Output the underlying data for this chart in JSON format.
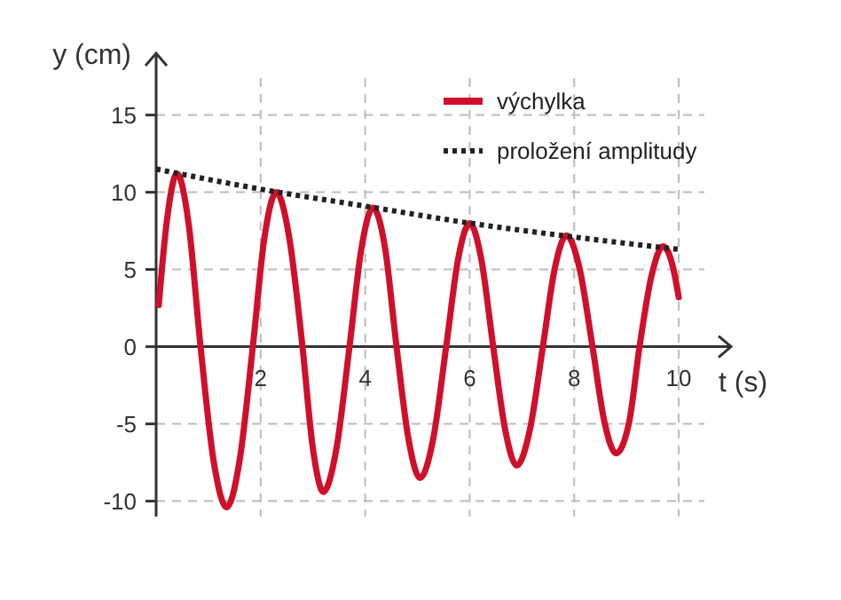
{
  "chart_data": {
    "type": "line",
    "xlabel": "t (s)",
    "ylabel": "y (cm)",
    "xlim": [
      0,
      11
    ],
    "ylim": [
      -11,
      19
    ],
    "xticks": [
      2,
      4,
      6,
      8,
      10
    ],
    "yticks": [
      -10,
      -5,
      0,
      5,
      10,
      15
    ],
    "grid": true,
    "legend": "top right",
    "series": [
      {
        "name": "výchylka",
        "color": "#d0102a",
        "line_style": "solid",
        "x": [
          0.05,
          0.2,
          0.4,
          0.62,
          0.85,
          1.1,
          1.35,
          1.6,
          1.85,
          2.07,
          2.3,
          2.55,
          2.8,
          3.0,
          3.2,
          3.45,
          3.7,
          3.93,
          4.15,
          4.38,
          4.6,
          4.83,
          5.05,
          5.3,
          5.55,
          5.78,
          6.0,
          6.22,
          6.45,
          6.68,
          6.9,
          7.15,
          7.4,
          7.63,
          7.85,
          8.1,
          8.35,
          8.58,
          8.8,
          9.05,
          9.25,
          9.48,
          9.7,
          9.9,
          10
        ],
        "values": [
          2.7,
          8,
          11.2,
          8,
          0,
          -7.4,
          -10.4,
          -7.3,
          0,
          7,
          10,
          7,
          0,
          -6.6,
          -9.4,
          -6.6,
          0,
          6.4,
          9,
          6.4,
          0,
          -6,
          -8.5,
          -6,
          0,
          5.7,
          8,
          5.7,
          0,
          -5.4,
          -7.7,
          -5.4,
          0,
          5.1,
          7.2,
          5.1,
          0,
          -4.9,
          -6.9,
          -4.9,
          0,
          4.6,
          6.5,
          5,
          3.2
        ]
      },
      {
        "name": "proložení amplitudy",
        "color": "#222222",
        "line_style": "dotted",
        "x": [
          0,
          2,
          4,
          6,
          8,
          10
        ],
        "values": [
          11.5,
          10.2,
          9.1,
          8.0,
          7.1,
          6.3
        ]
      }
    ]
  }
}
